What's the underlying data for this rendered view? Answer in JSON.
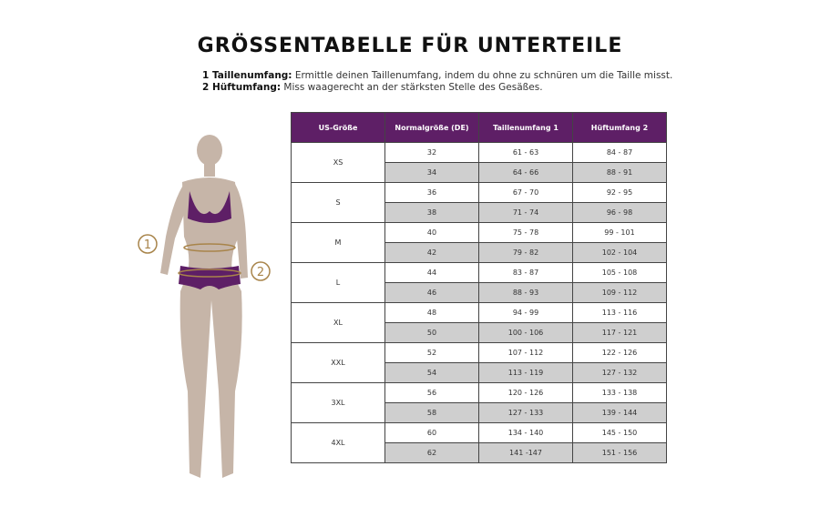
{
  "title": "GRÖSSENTABELLE FÜR UNTERTEILE",
  "notes": [
    {
      "label": "1 Taillenumfang:",
      "text": " Ermittle deinen Taillenumfang, indem du ohne zu schnüren um die Taille misst."
    },
    {
      "label": "2 Hüftumfang:",
      "text": " Miss waagerecht an der stärksten Stelle des Gesäßes."
    }
  ],
  "figure": {
    "marker_1": "1",
    "marker_2": "2",
    "accent": "#5e1f66",
    "skin": "#c6b5a8",
    "marker_color": "#a8844a"
  },
  "table": {
    "headers": [
      "US-Größe",
      "Normalgröße (DE)",
      "Taillenumfang 1",
      "Hüftumfang 2"
    ],
    "groups": [
      {
        "size": "XS",
        "rows": [
          [
            "32",
            "61 - 63",
            "84 - 87"
          ],
          [
            "34",
            "64 - 66",
            "88 - 91"
          ]
        ]
      },
      {
        "size": "S",
        "rows": [
          [
            "36",
            "67 - 70",
            "92 - 95"
          ],
          [
            "38",
            "71 - 74",
            "96 - 98"
          ]
        ]
      },
      {
        "size": "M",
        "rows": [
          [
            "40",
            "75 - 78",
            "99 - 101"
          ],
          [
            "42",
            "79 - 82",
            "102 - 104"
          ]
        ]
      },
      {
        "size": "L",
        "rows": [
          [
            "44",
            "83 - 87",
            "105 - 108"
          ],
          [
            "46",
            "88 - 93",
            "109 - 112"
          ]
        ]
      },
      {
        "size": "XL",
        "rows": [
          [
            "48",
            "94 - 99",
            "113 - 116"
          ],
          [
            "50",
            "100 - 106",
            "117 - 121"
          ]
        ]
      },
      {
        "size": "XXL",
        "rows": [
          [
            "52",
            "107 - 112",
            "122 - 126"
          ],
          [
            "54",
            "113 - 119",
            "127 - 132"
          ]
        ]
      },
      {
        "size": "3XL",
        "rows": [
          [
            "56",
            "120 - 126",
            "133 - 138"
          ],
          [
            "58",
            "127 - 133",
            "139 - 144"
          ]
        ]
      },
      {
        "size": "4XL",
        "rows": [
          [
            "60",
            "134 - 140",
            "145 - 150"
          ],
          [
            "62",
            "141 -147",
            "151 - 156"
          ]
        ]
      }
    ]
  }
}
